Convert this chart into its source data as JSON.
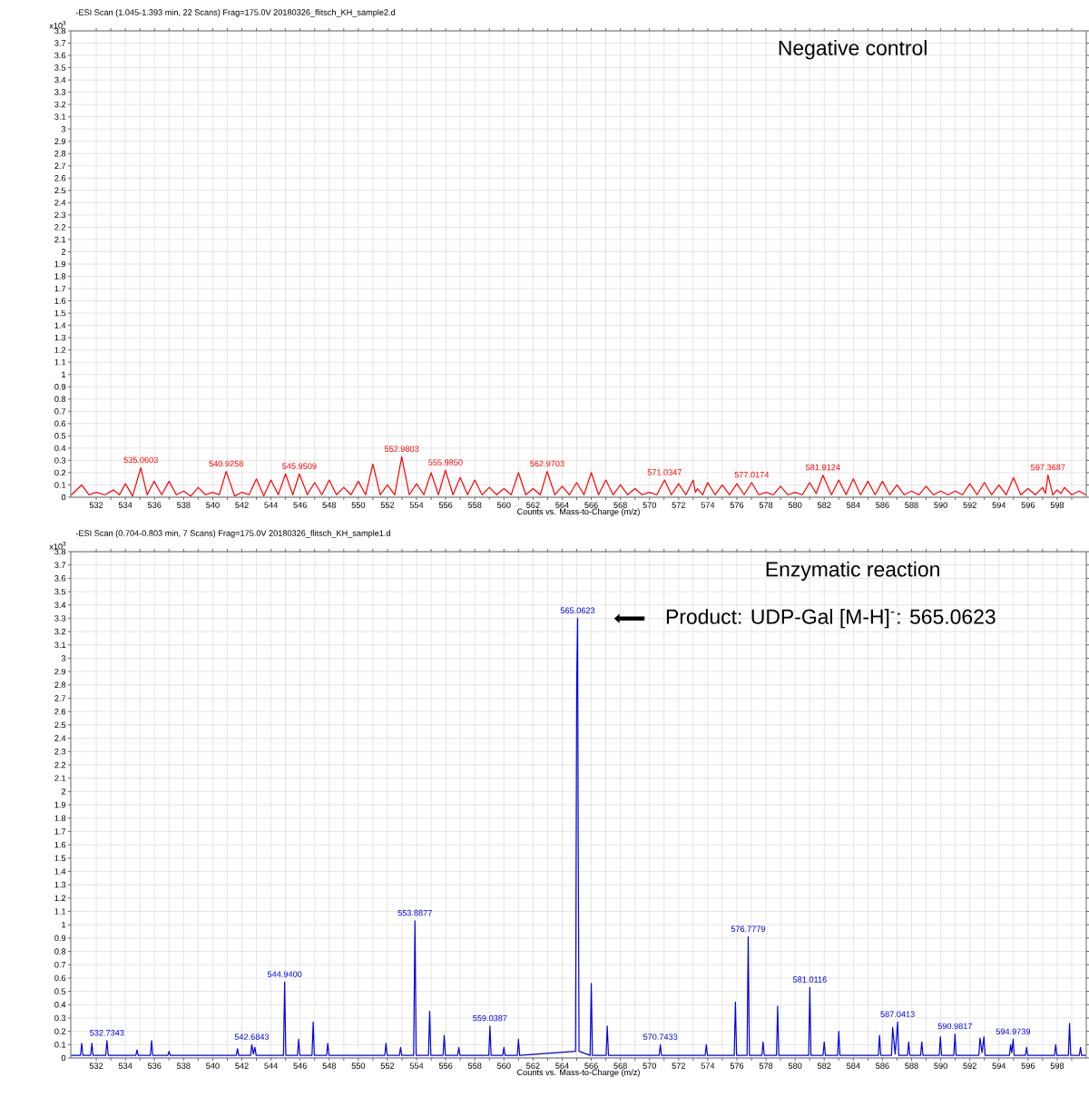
{
  "chart_data": [
    {
      "type": "line",
      "title": "-ESI Scan (1.045-1.393 min, 22 Scans) Frag=175.0V 20180326_flitsch_KH_sample2.d",
      "subtitle": "Negative control",
      "xlabel": "Counts vs. Mass-to-Charge (m/z)",
      "ylabel": "x10$^{3}$",
      "xlim": [
        530.25,
        600
      ],
      "xticks": [
        532,
        {
          "value": 533,
          "label": null
        },
        534,
        {
          "value": 535,
          "label": null
        },
        536,
        {
          "value": 537,
          "label": null
        },
        538,
        {
          "value": 539,
          "label": null
        },
        540,
        {
          "value": 541,
          "label": null
        },
        542,
        {
          "value": 543,
          "label": null
        },
        544,
        {
          "value": 545,
          "label": null
        },
        546,
        {
          "value": 547,
          "label": null
        },
        548,
        {
          "value": 549,
          "label": null
        },
        550,
        {
          "value": 551,
          "label": null
        },
        552,
        {
          "value": 553,
          "label": null
        },
        554,
        {
          "value": 555,
          "label": null
        },
        556,
        {
          "value": 557,
          "label": null
        },
        558,
        {
          "value": 559,
          "label": null
        },
        560,
        {
          "value": 561,
          "label": null
        },
        562,
        {
          "value": 563,
          "label": null
        },
        564,
        {
          "value": 565,
          "label": null
        },
        566,
        {
          "value": 567,
          "label": null
        },
        568,
        {
          "value": 569,
          "label": null
        },
        570,
        {
          "value": 571,
          "label": null
        },
        572,
        {
          "value": 573,
          "label": null
        },
        574,
        {
          "value": 575,
          "label": null
        },
        576,
        {
          "value": 577,
          "label": null
        },
        578,
        {
          "value": 579,
          "label": null
        },
        580,
        {
          "value": 581,
          "label": null
        },
        582,
        {
          "value": 583,
          "label": null
        },
        584,
        {
          "value": 585,
          "label": null
        },
        586,
        {
          "value": 587,
          "label": null
        },
        588,
        {
          "value": 589,
          "label": null
        },
        590,
        {
          "value": 591,
          "label": null
        },
        592,
        {
          "value": 593,
          "label": null
        },
        594,
        {
          "value": 595,
          "label": null
        },
        596,
        {
          "value": 597,
          "label": null
        },
        598,
        {
          "value": 599,
          "label": null
        }
      ],
      "ylim": [
        0,
        3.8
      ],
      "yticks": [
        0,
        0.1,
        0.2,
        0.3,
        0.4,
        0.5,
        0.6,
        0.7,
        0.8,
        0.9,
        1,
        1.1,
        1.2,
        1.3,
        1.4,
        1.5,
        1.6,
        1.7,
        1.8,
        1.9,
        2,
        2.1,
        2.2,
        2.3,
        2.4,
        2.5,
        2.6,
        2.7,
        2.8,
        2.9,
        3,
        3.1,
        3.2,
        3.3,
        3.4,
        3.5,
        3.6,
        3.7,
        3.8
      ],
      "grid": true,
      "annotations": [
        {
          "text": "535.0603",
          "x": 535.0603,
          "y": 0.24
        },
        {
          "text": "540.9258",
          "x": 540.9258,
          "y": 0.21
        },
        {
          "text": "545.9509",
          "x": 545.9509,
          "y": 0.19
        },
        {
          "text": "552.9803",
          "x": 552.9803,
          "y": 0.33
        },
        {
          "text": "555.9850",
          "x": 555.985,
          "y": 0.22
        },
        {
          "text": "562.9703",
          "x": 562.9703,
          "y": 0.21
        },
        {
          "text": "571.0347",
          "x": 571.0347,
          "y": 0.14
        },
        {
          "text": "577.0174",
          "x": 577.0174,
          "y": 0.12
        },
        {
          "text": "581.9124",
          "x": 581.9124,
          "y": 0.18
        },
        {
          "text": "597.3687",
          "x": 597.3687,
          "y": 0.18
        }
      ],
      "series": [
        {
          "color": "#ff0000",
          "x": [
            530.3,
            531,
            531.5,
            532,
            532.6,
            533.2,
            533.6,
            534,
            534.5,
            535.0603,
            535.5,
            535.97,
            536.5,
            537,
            537.5,
            538,
            538.5,
            539,
            539.5,
            540,
            540.45,
            540.9258,
            541.5,
            542,
            542.5,
            543,
            543.5,
            544,
            544.5,
            545,
            545.5,
            545.9509,
            546.5,
            547,
            547.5,
            548,
            548.5,
            549,
            549.5,
            550,
            550.5,
            551,
            551.5,
            552,
            552.5,
            552.9803,
            553.5,
            554,
            554.5,
            555,
            555.5,
            555.985,
            556.5,
            557,
            557.5,
            558,
            558.5,
            559,
            559.5,
            560,
            560.5,
            561,
            561.5,
            562,
            562.5,
            562.9703,
            563.5,
            564,
            564.5,
            565,
            565.5,
            566,
            566.5,
            567,
            567.5,
            568,
            568.5,
            569,
            569.5,
            570,
            570.5,
            571.0347,
            571.5,
            572,
            572.5,
            573,
            573.15,
            573.3,
            573.65,
            574,
            574.5,
            575,
            575.5,
            576,
            576.5,
            577.0174,
            577.5,
            578,
            578.5,
            579,
            579.5,
            580,
            580.5,
            581,
            581.45,
            581.9124,
            582.5,
            583,
            583.5,
            584,
            584.5,
            585,
            585.5,
            586,
            586.5,
            587,
            587.5,
            588,
            588.5,
            589,
            589.5,
            590,
            590.5,
            591,
            591.5,
            592,
            592.5,
            593,
            593.5,
            594,
            594.5,
            595,
            595.5,
            596,
            596.5,
            597,
            597.2,
            597.3687,
            597.7,
            598,
            598.25,
            598.5,
            599,
            599.5,
            599.95
          ],
          "values": [
            0.02,
            0.1,
            0.02,
            0.04,
            0.02,
            0.06,
            0.02,
            0.11,
            0.01,
            0.24,
            0.02,
            0.13,
            0.02,
            0.13,
            0.02,
            0.05,
            0.01,
            0.08,
            0.02,
            0.04,
            0.02,
            0.21,
            0.01,
            0.04,
            0.02,
            0.15,
            0.01,
            0.14,
            0.02,
            0.19,
            0.02,
            0.19,
            0.02,
            0.12,
            0.02,
            0.14,
            0.02,
            0.08,
            0.02,
            0.13,
            0.02,
            0.27,
            0.02,
            0.1,
            0.02,
            0.33,
            0.02,
            0.11,
            0.02,
            0.2,
            0.02,
            0.22,
            0.02,
            0.16,
            0.02,
            0.14,
            0.02,
            0.08,
            0.02,
            0.07,
            0.02,
            0.2,
            0.02,
            0.07,
            0.02,
            0.21,
            0.02,
            0.09,
            0.02,
            0.12,
            0.02,
            0.2,
            0.02,
            0.14,
            0.02,
            0.1,
            0.02,
            0.07,
            0.02,
            0.04,
            0.02,
            0.14,
            0.02,
            0.11,
            0.02,
            0.14,
            0.04,
            0.07,
            0.02,
            0.12,
            0.02,
            0.1,
            0.02,
            0.11,
            0.02,
            0.12,
            0.02,
            0.04,
            0.02,
            0.09,
            0.02,
            0.04,
            0.02,
            0.12,
            0.03,
            0.18,
            0.02,
            0.14,
            0.02,
            0.15,
            0.02,
            0.13,
            0.02,
            0.13,
            0.02,
            0.1,
            0.02,
            0.05,
            0.02,
            0.09,
            0.02,
            0.05,
            0.02,
            0.05,
            0.02,
            0.11,
            0.02,
            0.12,
            0.02,
            0.1,
            0.02,
            0.16,
            0.02,
            0.07,
            0.02,
            0.08,
            0.03,
            0.18,
            0.02,
            0.06,
            0.03,
            0.08,
            0.02,
            0.05,
            0.02
          ]
        }
      ]
    },
    {
      "type": "line",
      "title": "-ESI Scan (0.704-0.803 min, 7 Scans) Frag=175.0V 20180326_flitsch_KH_sample1.d",
      "subtitle": "Enzymatic reaction",
      "xlabel": "Counts vs. Mass-to-Charge (m/z)",
      "ylabel": "x10$^{3}$",
      "xlim": [
        530.25,
        600
      ],
      "xticks": [
        532,
        {
          "value": 533,
          "label": null
        },
        534,
        {
          "value": 535,
          "label": null
        },
        536,
        {
          "value": 537,
          "label": null
        },
        538,
        {
          "value": 539,
          "label": null
        },
        540,
        {
          "value": 541,
          "label": null
        },
        542,
        {
          "value": 543,
          "label": null
        },
        544,
        {
          "value": 545,
          "label": null
        },
        546,
        {
          "value": 547,
          "label": null
        },
        548,
        {
          "value": 549,
          "label": null
        },
        550,
        {
          "value": 551,
          "label": null
        },
        552,
        {
          "value": 553,
          "label": null
        },
        554,
        {
          "value": 555,
          "label": null
        },
        556,
        {
          "value": 557,
          "label": null
        },
        558,
        {
          "value": 559,
          "label": null
        },
        560,
        {
          "value": 561,
          "label": null
        },
        562,
        {
          "value": 563,
          "label": null
        },
        564,
        {
          "value": 565,
          "label": null
        },
        566,
        {
          "value": 567,
          "label": null
        },
        568,
        {
          "value": 569,
          "label": null
        },
        570,
        {
          "value": 571,
          "label": null
        },
        572,
        {
          "value": 573,
          "label": null
        },
        574,
        {
          "value": 575,
          "label": null
        },
        576,
        {
          "value": 577,
          "label": null
        },
        578,
        {
          "value": 579,
          "label": null
        },
        580,
        {
          "value": 581,
          "label": null
        },
        582,
        {
          "value": 583,
          "label": null
        },
        584,
        {
          "value": 585,
          "label": null
        },
        586,
        {
          "value": 587,
          "label": null
        },
        588,
        {
          "value": 589,
          "label": null
        },
        590,
        {
          "value": 591,
          "label": null
        },
        592,
        {
          "value": 593,
          "label": null
        },
        594,
        {
          "value": 595,
          "label": null
        },
        596,
        {
          "value": 597,
          "label": null
        },
        598,
        {
          "value": 599,
          "label": null
        }
      ],
      "ylim": [
        0,
        3.8
      ],
      "yticks": [
        0,
        0.1,
        0.2,
        0.3,
        0.4,
        0.5,
        0.6,
        0.7,
        0.8,
        0.9,
        1,
        1.1,
        1.2,
        1.3,
        1.4,
        1.5,
        1.6,
        1.7,
        1.8,
        1.9,
        2,
        2.1,
        2.2,
        2.3,
        2.4,
        2.5,
        2.6,
        2.7,
        2.8,
        2.9,
        3,
        3.1,
        3.2,
        3.3,
        3.4,
        3.5,
        3.6,
        3.7,
        3.8
      ],
      "grid": true,
      "annotations": [
        {
          "text": "532.7343",
          "x": 532.7343,
          "y": 0.13
        },
        {
          "text": "542.6843",
          "x": 542.6843,
          "y": 0.1
        },
        {
          "text": "544.9400",
          "x": 544.94,
          "y": 0.57
        },
        {
          "text": "553.8877",
          "x": 553.8877,
          "y": 1.03
        },
        {
          "text": "559.0387",
          "x": 559.0387,
          "y": 0.24
        },
        {
          "text": "565.0623",
          "x": 565.0623,
          "y": 3.3
        },
        {
          "text": "570.7433",
          "x": 570.7433,
          "y": 0.1
        },
        {
          "text": "576.7779",
          "x": 576.7779,
          "y": 0.91
        },
        {
          "text": "581.0116",
          "x": 581.0116,
          "y": 0.53
        },
        {
          "text": "587.0413",
          "x": 587.0413,
          "y": 0.27
        },
        {
          "text": "590.9817",
          "x": 590.9817,
          "y": 0.18
        },
        {
          "text": "594.9739",
          "x": 594.9739,
          "y": 0.14
        },
        "Product: UDP-Gal [M-H]$^{-}$: 565.0623"
      ],
      "series": [
        {
          "color": "#0000e6",
          "x": [
            530.3,
            530.92,
            531,
            531.08,
            531.62,
            531.7,
            531.78,
            532.65,
            532.7343,
            532.82,
            534.72,
            534.8,
            534.88,
            535.72,
            535.8,
            535.88,
            536.92,
            537,
            537.08,
            541.62,
            541.7,
            541.78,
            542.6,
            542.6843,
            542.79,
            542.9,
            542.98,
            544.86,
            544.94,
            545.02,
            545.82,
            545.9,
            545.98,
            546.82,
            546.9,
            546.98,
            547.82,
            547.9,
            547.98,
            551.82,
            551.9,
            551.98,
            552.82,
            552.9,
            552.98,
            553.8,
            553.8877,
            553.97,
            554.82,
            554.9,
            554.98,
            555.82,
            555.9,
            555.98,
            556.82,
            556.9,
            556.98,
            558.96,
            559.0387,
            559.12,
            559.92,
            560,
            560.08,
            560.92,
            561,
            561.08,
            564.92,
            565.0,
            565.0623,
            565.1,
            565.16,
            565.92,
            566,
            566.08,
            567.02,
            567.1,
            567.18,
            570.66,
            570.7433,
            570.82,
            573.82,
            573.9,
            573.98,
            575.82,
            575.9,
            575.98,
            576.7,
            576.7779,
            576.86,
            577.72,
            577.8,
            577.88,
            578.72,
            578.8,
            578.88,
            580.93,
            581.0116,
            581.09,
            581.92,
            582,
            582.08,
            582.92,
            583,
            583.08,
            585.72,
            585.8,
            585.88,
            586.62,
            586.7,
            586.87,
            587.0413,
            587.12,
            587.72,
            587.8,
            587.88,
            588.62,
            588.7,
            588.78,
            589.9,
            589.98,
            590.06,
            590.9,
            590.9817,
            591.06,
            592.62,
            592.7,
            592.84,
            592.97,
            593.05,
            594.72,
            594.8,
            594.88,
            594.9739,
            595.05,
            595.82,
            595.9,
            595.98,
            597.82,
            597.9,
            597.98,
            598.77,
            598.85,
            598.93,
            599.52,
            599.6,
            599.68,
            599.95
          ],
          "values": [
            0.02,
            0.02,
            0.11,
            0.02,
            0.02,
            0.11,
            0.02,
            0.02,
            0.13,
            0.02,
            0.02,
            0.06,
            0.02,
            0.02,
            0.13,
            0.02,
            0.02,
            0.05,
            0.02,
            0.02,
            0.07,
            0.02,
            0.02,
            0.1,
            0.03,
            0.08,
            0.02,
            0.02,
            0.57,
            0.02,
            0.02,
            0.14,
            0.02,
            0.02,
            0.27,
            0.02,
            0.02,
            0.11,
            0.02,
            0.02,
            0.11,
            0.02,
            0.02,
            0.08,
            0.02,
            0.02,
            1.03,
            0.02,
            0.02,
            0.35,
            0.02,
            0.02,
            0.17,
            0.02,
            0.02,
            0.08,
            0.02,
            0.02,
            0.24,
            0.02,
            0.02,
            0.08,
            0.02,
            0.02,
            0.14,
            0.02,
            0.05,
            2.83,
            3.3,
            1.72,
            0.05,
            0.02,
            0.56,
            0.02,
            0.02,
            0.24,
            0.02,
            0.02,
            0.1,
            0.02,
            0.02,
            0.1,
            0.02,
            0.02,
            0.42,
            0.02,
            0.02,
            0.91,
            0.02,
            0.02,
            0.12,
            0.02,
            0.02,
            0.39,
            0.02,
            0.02,
            0.53,
            0.02,
            0.02,
            0.12,
            0.02,
            0.02,
            0.2,
            0.02,
            0.02,
            0.17,
            0.02,
            0.02,
            0.23,
            0.03,
            0.27,
            0.02,
            0.02,
            0.12,
            0.02,
            0.02,
            0.12,
            0.02,
            0.02,
            0.16,
            0.02,
            0.02,
            0.18,
            0.02,
            0.02,
            0.15,
            0.04,
            0.16,
            0.02,
            0.02,
            0.1,
            0.04,
            0.14,
            0.02,
            0.02,
            0.08,
            0.02,
            0.02,
            0.1,
            0.02,
            0.02,
            0.26,
            0.02,
            0.02,
            0.08,
            0.02,
            0.02
          ]
        }
      ]
    }
  ]
}
